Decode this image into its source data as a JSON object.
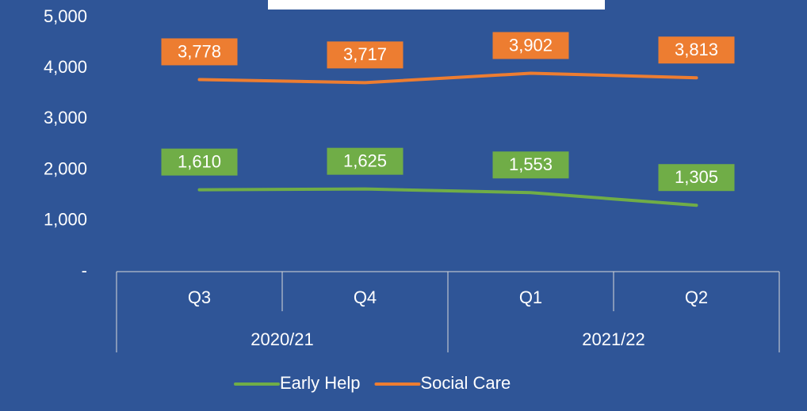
{
  "chart_data": {
    "type": "line",
    "categories": [
      "Q3",
      "Q4",
      "Q1",
      "Q2"
    ],
    "category_groups": [
      "2020/21",
      "2021/22"
    ],
    "series": [
      {
        "name": "Early Help",
        "color": "#70ad47",
        "values": [
          1610,
          1625,
          1553,
          1305
        ],
        "value_labels": [
          "1,610",
          "1,625",
          "1,553",
          "1,305"
        ]
      },
      {
        "name": "Social Care",
        "color": "#ed7d31",
        "values": [
          3778,
          3717,
          3902,
          3813
        ],
        "value_labels": [
          "3,778",
          "3,717",
          "3,902",
          "3,813"
        ]
      }
    ],
    "ylim": [
      0,
      5000
    ],
    "yticks": [
      {
        "value": 0,
        "label": "-"
      },
      {
        "value": 1000,
        "label": "1,000"
      },
      {
        "value": 2000,
        "label": "2,000"
      },
      {
        "value": 3000,
        "label": "3,000"
      },
      {
        "value": 4000,
        "label": "4,000"
      },
      {
        "value": 5000,
        "label": "5,000"
      }
    ],
    "legend": "bottom"
  }
}
